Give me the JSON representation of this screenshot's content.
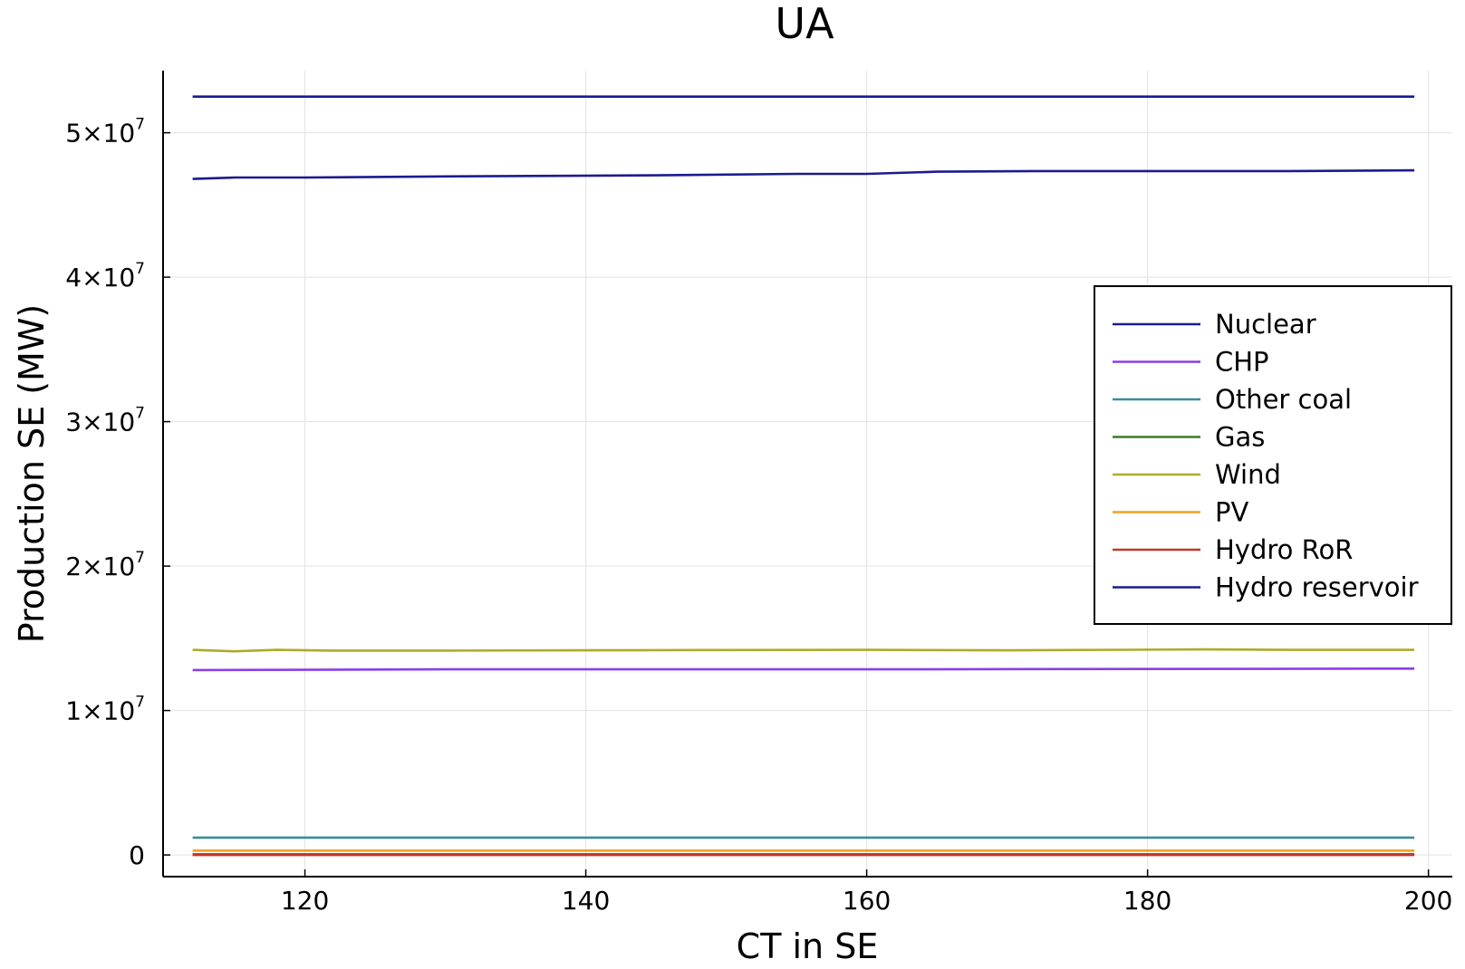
{
  "chart_data": {
    "type": "line",
    "title": "UA",
    "xlabel": "CT in SE",
    "ylabel": "Production SE (MW)",
    "xlim": [
      109.9,
      201.7
    ],
    "ylim": [
      -1500000,
      54300000
    ],
    "xticks": [
      120,
      140,
      160,
      180,
      200
    ],
    "yticks": [
      {
        "value": 0,
        "mantissa": "0",
        "exponent": ""
      },
      {
        "value": 10000000,
        "mantissa": "1×10",
        "exponent": "7"
      },
      {
        "value": 20000000,
        "mantissa": "2×10",
        "exponent": "7"
      },
      {
        "value": 30000000,
        "mantissa": "3×10",
        "exponent": "7"
      },
      {
        "value": 40000000,
        "mantissa": "4×10",
        "exponent": "7"
      },
      {
        "value": 50000000,
        "mantissa": "5×10",
        "exponent": "7"
      }
    ],
    "grid": true,
    "legend_position": "right",
    "series": [
      {
        "name": "Nuclear",
        "color": "#1b1b8f",
        "points": [
          [
            112,
            52500000
          ],
          [
            199,
            52500000
          ]
        ]
      },
      {
        "name": "CHP",
        "color": "#8a3ee8",
        "points": [
          [
            112,
            12800000
          ],
          [
            130,
            12850000
          ],
          [
            160,
            12850000
          ],
          [
            199,
            12900000
          ]
        ]
      },
      {
        "name": "Other coal",
        "color": "#3b8c9a",
        "points": [
          [
            112,
            1200000
          ],
          [
            199,
            1200000
          ]
        ]
      },
      {
        "name": "Gas",
        "color": "#3a7d24",
        "points": [
          [
            112,
            50000
          ],
          [
            199,
            50000
          ]
        ]
      },
      {
        "name": "Wind",
        "color": "#aeaa2a",
        "points": [
          [
            112,
            14200000
          ],
          [
            115,
            14100000
          ],
          [
            118,
            14200000
          ],
          [
            122,
            14150000
          ],
          [
            130,
            14150000
          ],
          [
            145,
            14180000
          ],
          [
            160,
            14200000
          ],
          [
            170,
            14170000
          ],
          [
            184,
            14230000
          ],
          [
            190,
            14200000
          ],
          [
            199,
            14200000
          ]
        ]
      },
      {
        "name": "PV",
        "color": "#f0a023",
        "points": [
          [
            112,
            300000
          ],
          [
            199,
            300000
          ]
        ]
      },
      {
        "name": "Hydro RoR",
        "color": "#c0392b",
        "points": [
          [
            112,
            0
          ],
          [
            199,
            0
          ]
        ]
      },
      {
        "name": "Hydro reservoir",
        "color": "#1b1b8f",
        "points": [
          [
            112,
            46800000
          ],
          [
            115,
            46900000
          ],
          [
            120,
            46900000
          ],
          [
            130,
            46980000
          ],
          [
            145,
            47050000
          ],
          [
            155,
            47150000
          ],
          [
            160,
            47150000
          ],
          [
            165,
            47300000
          ],
          [
            172,
            47350000
          ],
          [
            180,
            47350000
          ],
          [
            190,
            47350000
          ],
          [
            199,
            47400000
          ]
        ]
      }
    ]
  }
}
